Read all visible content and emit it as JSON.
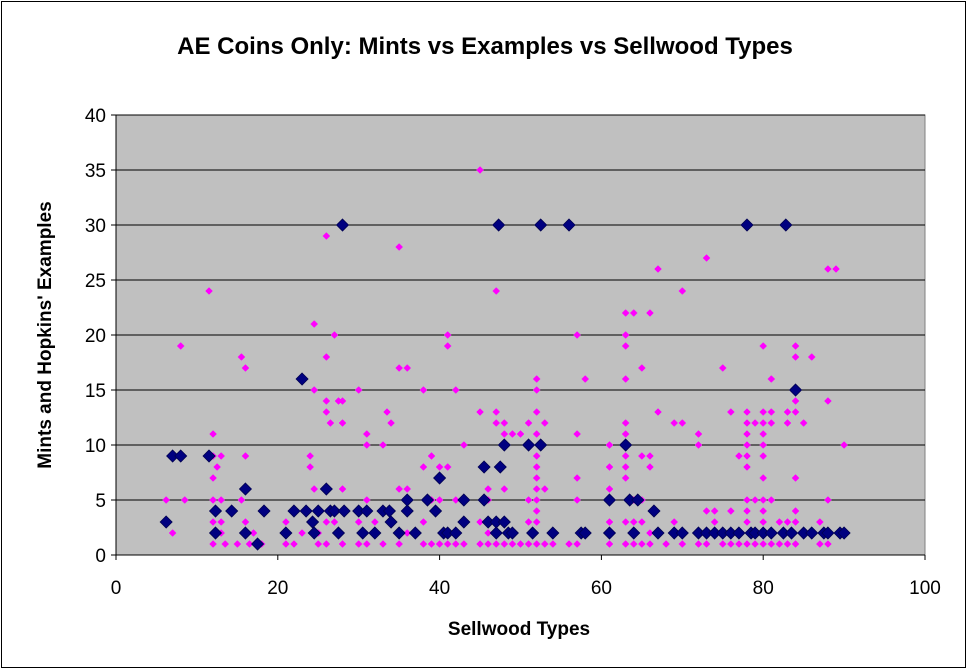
{
  "chart_data": {
    "type": "scatter",
    "title": "AE Coins Only: Mints vs Examples vs Sellwood Types",
    "xlabel": "Sellwood Types",
    "ylabel": "Mints and Hopkins' Examples",
    "xlim": [
      0,
      100
    ],
    "ylim": [
      0,
      40
    ],
    "x_ticks": [
      0,
      20,
      40,
      60,
      80,
      100
    ],
    "y_ticks": [
      0,
      5,
      10,
      15,
      20,
      25,
      30,
      35,
      40
    ],
    "grid": "horizontal",
    "legend": "none",
    "colors": {
      "plot_background": "#c0c0c0",
      "mints_series": "#000080",
      "examples_series": "#ff00ff"
    },
    "series": [
      {
        "marker": "diamond-large",
        "color": "#000080",
        "points": [
          [
            6.2,
            3
          ],
          [
            7,
            9
          ],
          [
            8,
            9
          ],
          [
            11.5,
            9
          ],
          [
            12.3,
            4
          ],
          [
            12.3,
            2
          ],
          [
            14.3,
            4
          ],
          [
            16,
            6
          ],
          [
            16,
            2
          ],
          [
            17.5,
            1
          ],
          [
            18.3,
            4
          ],
          [
            21,
            2
          ],
          [
            22,
            4
          ],
          [
            23,
            16
          ],
          [
            23.5,
            4
          ],
          [
            24.3,
            3
          ],
          [
            24.5,
            2
          ],
          [
            25,
            4
          ],
          [
            26,
            6
          ],
          [
            26.5,
            4
          ],
          [
            27,
            4
          ],
          [
            27.5,
            2
          ],
          [
            28,
            30
          ],
          [
            28.2,
            4
          ],
          [
            30,
            4
          ],
          [
            30.5,
            2
          ],
          [
            31,
            4
          ],
          [
            32,
            2
          ],
          [
            33,
            4
          ],
          [
            33.8,
            4
          ],
          [
            34,
            3
          ],
          [
            35,
            2
          ],
          [
            36,
            4
          ],
          [
            36,
            5
          ],
          [
            37,
            2
          ],
          [
            38.5,
            5
          ],
          [
            39.5,
            4
          ],
          [
            40,
            7
          ],
          [
            40.5,
            2
          ],
          [
            41,
            2
          ],
          [
            42,
            2
          ],
          [
            43,
            3
          ],
          [
            43,
            5
          ],
          [
            45.5,
            8
          ],
          [
            45.5,
            5
          ],
          [
            46,
            3
          ],
          [
            47,
            3
          ],
          [
            47,
            2
          ],
          [
            47.3,
            30
          ],
          [
            47.5,
            8
          ],
          [
            48,
            10
          ],
          [
            48,
            3
          ],
          [
            48.5,
            2
          ],
          [
            49,
            2
          ],
          [
            51,
            10
          ],
          [
            51.5,
            2
          ],
          [
            52.5,
            30
          ],
          [
            52.5,
            10
          ],
          [
            54,
            2
          ],
          [
            56,
            30
          ],
          [
            57.5,
            2
          ],
          [
            58,
            2
          ],
          [
            61,
            5
          ],
          [
            61,
            2
          ],
          [
            63,
            10
          ],
          [
            63.5,
            5
          ],
          [
            64,
            2
          ],
          [
            64.5,
            5
          ],
          [
            66.5,
            4
          ],
          [
            67,
            2
          ],
          [
            69,
            2
          ],
          [
            70,
            2
          ],
          [
            72,
            2
          ],
          [
            73,
            2
          ],
          [
            74,
            2
          ],
          [
            75,
            2
          ],
          [
            76,
            2
          ],
          [
            77,
            2
          ],
          [
            78,
            30
          ],
          [
            78.5,
            2
          ],
          [
            79,
            2
          ],
          [
            80,
            2
          ],
          [
            81,
            2
          ],
          [
            82.5,
            2
          ],
          [
            82.8,
            30
          ],
          [
            83.5,
            2
          ],
          [
            84,
            15
          ],
          [
            85,
            2
          ],
          [
            86,
            2
          ],
          [
            87.5,
            2
          ],
          [
            88,
            2
          ],
          [
            89.5,
            2
          ],
          [
            90,
            2
          ]
        ]
      },
      {
        "marker": "diamond-small",
        "color": "#ff00ff",
        "points": [
          [
            6.2,
            5
          ],
          [
            7,
            2
          ],
          [
            8,
            19
          ],
          [
            8.5,
            5
          ],
          [
            11.5,
            24
          ],
          [
            12,
            11
          ],
          [
            12,
            9
          ],
          [
            12,
            7
          ],
          [
            12,
            5
          ],
          [
            12,
            3
          ],
          [
            12,
            1
          ],
          [
            12.5,
            8
          ],
          [
            13,
            9
          ],
          [
            13,
            5
          ],
          [
            13,
            3
          ],
          [
            13,
            2
          ],
          [
            13.5,
            1
          ],
          [
            15,
            1
          ],
          [
            15.5,
            18
          ],
          [
            15.5,
            5
          ],
          [
            16,
            17
          ],
          [
            16,
            9
          ],
          [
            16,
            3
          ],
          [
            16.5,
            1
          ],
          [
            17,
            2
          ],
          [
            18,
            1
          ],
          [
            21,
            3
          ],
          [
            21,
            1
          ],
          [
            22,
            1
          ],
          [
            23,
            2
          ],
          [
            24,
            9
          ],
          [
            24,
            8
          ],
          [
            24.5,
            21
          ],
          [
            24.5,
            15
          ],
          [
            24.5,
            6
          ],
          [
            25,
            2
          ],
          [
            25,
            1
          ],
          [
            26,
            29
          ],
          [
            26,
            18
          ],
          [
            26,
            14
          ],
          [
            26,
            13
          ],
          [
            26,
            3
          ],
          [
            26,
            1
          ],
          [
            26.5,
            12
          ],
          [
            27,
            20
          ],
          [
            27,
            3
          ],
          [
            27.5,
            14
          ],
          [
            28,
            14
          ],
          [
            28,
            12
          ],
          [
            28,
            6
          ],
          [
            28,
            1
          ],
          [
            30,
            15
          ],
          [
            30,
            3
          ],
          [
            30,
            1
          ],
          [
            31,
            11
          ],
          [
            31,
            10
          ],
          [
            31,
            5
          ],
          [
            31,
            1
          ],
          [
            32,
            3
          ],
          [
            33,
            10
          ],
          [
            33,
            1
          ],
          [
            33.5,
            13
          ],
          [
            34,
            12
          ],
          [
            34,
            3
          ],
          [
            35,
            28
          ],
          [
            35,
            17
          ],
          [
            35,
            6
          ],
          [
            35,
            1
          ],
          [
            36,
            17
          ],
          [
            36,
            6
          ],
          [
            36,
            2
          ],
          [
            38,
            15
          ],
          [
            38,
            8
          ],
          [
            38,
            3
          ],
          [
            38,
            1
          ],
          [
            39,
            9
          ],
          [
            39,
            5
          ],
          [
            39,
            1
          ],
          [
            40,
            8
          ],
          [
            40,
            5
          ],
          [
            40,
            1
          ],
          [
            41,
            20
          ],
          [
            41,
            19
          ],
          [
            41,
            8
          ],
          [
            41,
            1
          ],
          [
            42,
            15
          ],
          [
            42,
            5
          ],
          [
            42,
            1
          ],
          [
            43,
            10
          ],
          [
            43,
            1
          ],
          [
            45,
            35
          ],
          [
            45,
            13
          ],
          [
            45,
            3
          ],
          [
            45,
            1
          ],
          [
            46,
            6
          ],
          [
            46,
            5
          ],
          [
            46,
            2
          ],
          [
            46,
            1
          ],
          [
            47,
            24
          ],
          [
            47,
            13
          ],
          [
            47,
            12
          ],
          [
            47,
            1
          ],
          [
            48,
            12
          ],
          [
            48,
            11
          ],
          [
            48,
            6
          ],
          [
            48,
            1
          ],
          [
            49,
            11
          ],
          [
            49,
            1
          ],
          [
            50,
            11
          ],
          [
            50,
            1
          ],
          [
            51,
            12
          ],
          [
            51,
            5
          ],
          [
            51,
            3
          ],
          [
            51,
            1
          ],
          [
            52,
            16
          ],
          [
            52,
            15
          ],
          [
            52,
            13
          ],
          [
            52,
            11
          ],
          [
            52,
            9
          ],
          [
            52,
            8
          ],
          [
            52,
            7
          ],
          [
            52,
            6
          ],
          [
            52,
            5
          ],
          [
            52,
            4
          ],
          [
            52,
            3
          ],
          [
            52,
            1
          ],
          [
            53,
            12
          ],
          [
            53,
            6
          ],
          [
            53,
            1
          ],
          [
            54,
            1
          ],
          [
            56,
            1
          ],
          [
            57,
            20
          ],
          [
            57,
            11
          ],
          [
            57,
            7
          ],
          [
            57,
            5
          ],
          [
            57,
            1
          ],
          [
            58,
            16
          ],
          [
            61,
            10
          ],
          [
            61,
            8
          ],
          [
            61,
            6
          ],
          [
            61,
            3
          ],
          [
            61,
            1
          ],
          [
            63,
            22
          ],
          [
            63,
            20
          ],
          [
            63,
            19
          ],
          [
            63,
            16
          ],
          [
            63,
            12
          ],
          [
            63,
            11
          ],
          [
            63,
            9
          ],
          [
            63,
            8
          ],
          [
            63,
            7
          ],
          [
            63,
            3
          ],
          [
            63,
            1
          ],
          [
            64,
            22
          ],
          [
            64,
            5
          ],
          [
            64,
            3
          ],
          [
            64,
            1
          ],
          [
            65,
            17
          ],
          [
            65,
            9
          ],
          [
            65,
            5
          ],
          [
            65,
            3
          ],
          [
            65,
            1
          ],
          [
            66,
            22
          ],
          [
            66,
            9
          ],
          [
            66,
            8
          ],
          [
            66,
            2
          ],
          [
            66,
            1
          ],
          [
            67,
            26
          ],
          [
            67,
            13
          ],
          [
            68,
            1
          ],
          [
            69,
            12
          ],
          [
            69,
            3
          ],
          [
            70,
            24
          ],
          [
            70,
            12
          ],
          [
            70,
            1
          ],
          [
            72,
            11
          ],
          [
            72,
            10
          ],
          [
            72,
            2
          ],
          [
            72,
            1
          ],
          [
            73,
            27
          ],
          [
            73,
            4
          ],
          [
            73,
            1
          ],
          [
            74,
            4
          ],
          [
            74,
            3
          ],
          [
            75,
            17
          ],
          [
            75,
            1
          ],
          [
            76,
            13
          ],
          [
            76,
            4
          ],
          [
            76,
            1
          ],
          [
            77,
            9
          ],
          [
            77,
            1
          ],
          [
            78,
            13
          ],
          [
            78,
            12
          ],
          [
            78,
            11
          ],
          [
            78,
            10
          ],
          [
            78,
            9
          ],
          [
            78,
            8
          ],
          [
            78,
            5
          ],
          [
            78,
            4
          ],
          [
            78,
            3
          ],
          [
            78,
            1
          ],
          [
            79,
            12
          ],
          [
            79,
            5
          ],
          [
            79,
            2
          ],
          [
            79,
            1
          ],
          [
            80,
            19
          ],
          [
            80,
            13
          ],
          [
            80,
            12
          ],
          [
            80,
            11
          ],
          [
            80,
            10
          ],
          [
            80,
            9
          ],
          [
            80,
            7
          ],
          [
            80,
            5
          ],
          [
            80,
            4
          ],
          [
            80,
            3
          ],
          [
            80,
            2
          ],
          [
            80,
            1
          ],
          [
            81,
            16
          ],
          [
            81,
            13
          ],
          [
            81,
            12
          ],
          [
            81,
            5
          ],
          [
            81,
            1
          ],
          [
            82,
            3
          ],
          [
            82,
            1
          ],
          [
            83,
            13
          ],
          [
            83,
            12
          ],
          [
            83,
            3
          ],
          [
            83,
            1
          ],
          [
            84,
            19
          ],
          [
            84,
            18
          ],
          [
            84,
            14
          ],
          [
            84,
            13
          ],
          [
            84,
            7
          ],
          [
            84,
            4
          ],
          [
            84,
            3
          ],
          [
            84,
            1
          ],
          [
            85,
            12
          ],
          [
            86,
            18
          ],
          [
            86,
            2
          ],
          [
            87,
            3
          ],
          [
            87,
            1
          ],
          [
            88,
            26
          ],
          [
            88,
            14
          ],
          [
            88,
            5
          ],
          [
            88,
            1
          ],
          [
            89,
            26
          ],
          [
            90,
            10
          ]
        ]
      }
    ]
  }
}
